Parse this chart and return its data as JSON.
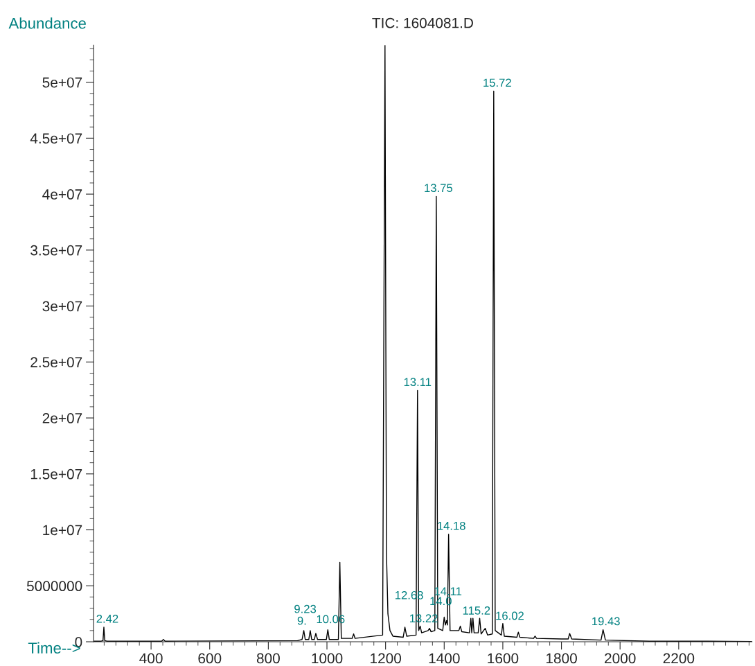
{
  "chart_data": {
    "type": "line",
    "title": "TIC: 1604081.D",
    "xlabel": "Time-->",
    "ylabel": "Abundance",
    "series": [
      {
        "color": "#000000",
        "x": [
          204,
          230,
          236,
          239,
          242,
          250,
          436,
          442,
          448,
          900,
          915,
          921,
          926,
          938,
          943,
          948,
          957,
          962,
          968,
          998,
          1003,
          1008,
          1039,
          1044,
          1049,
          1086,
          1091,
          1096,
          1190,
          1198,
          1203,
          1208,
          1215,
          1225,
          1260,
          1266,
          1272,
          1304,
          1309,
          1313,
          1318,
          1323,
          1345,
          1350,
          1355,
          1368,
          1373,
          1378,
          1395,
          1400,
          1404,
          1408,
          1411,
          1415,
          1420,
          1450,
          1455,
          1460,
          1486,
          1491,
          1494,
          1498,
          1502,
          1516,
          1521,
          1526,
          1540,
          1548,
          1564,
          1569,
          1574,
          1595,
          1600,
          1605,
          1648,
          1653,
          1658,
          1705,
          1710,
          1715,
          1800,
          1823,
          1828,
          1835,
          1935,
          1942,
          1950,
          2100,
          2300,
          2450
        ],
        "values": [
          50000,
          50000,
          100000,
          1300000,
          100000,
          50000,
          50000,
          200000,
          50000,
          100000,
          200000,
          1000000,
          200000,
          200000,
          1000000,
          200000,
          200000,
          750000,
          200000,
          200000,
          1080000,
          200000,
          200000,
          7100000,
          300000,
          300000,
          700000,
          300000,
          600000,
          53300000,
          8000000,
          2500000,
          1000000,
          500000,
          400000,
          1300000,
          500000,
          600000,
          22460000,
          1000000,
          1400000,
          800000,
          1000000,
          1200000,
          900000,
          1000000,
          39800000,
          1200000,
          1000000,
          2200000,
          1500000,
          1900000,
          1500000,
          9600000,
          1000000,
          1000000,
          1400000,
          900000,
          800000,
          2100000,
          800000,
          2100000,
          800000,
          800000,
          2100000,
          700000,
          1200000,
          600000,
          700000,
          49200000,
          1000000,
          600000,
          1630000,
          500000,
          400000,
          860000,
          400000,
          300000,
          500000,
          300000,
          250000,
          250000,
          740000,
          250000,
          150000,
          1080000,
          150000,
          50000,
          50000,
          20000
        ]
      }
    ],
    "annotations": [
      {
        "text": "2.42",
        "x": 239,
        "y": 1300000
      },
      {
        "text": "9.23",
        "x": 921,
        "y": 1000000
      },
      {
        "text": "9.",
        "x": 943,
        "y": 1000000
      },
      {
        "text": "10.06",
        "x": 1003,
        "y": 1080000
      },
      {
        "text": "12.68",
        "x": 1266,
        "y": 1300000
      },
      {
        "text": "13.11",
        "x": 1309,
        "y": 22460000
      },
      {
        "text": "13.22",
        "x": 1318,
        "y": 1400000
      },
      {
        "text": "13.75",
        "x": 1373,
        "y": 39800000
      },
      {
        "text": "14.0",
        "x": 1400,
        "y": 2200000
      },
      {
        "text": "14.11",
        "x": 1408,
        "y": 1900000
      },
      {
        "text": "14.18",
        "x": 1415,
        "y": 9600000
      },
      {
        "text": "115.2",
        "x": 1491,
        "y": 2100000
      },
      {
        "text": "15.72",
        "x": 1569,
        "y": 49200000
      },
      {
        "text": "16.02",
        "x": 1600,
        "y": 1630000
      },
      {
        "text": "19.43",
        "x": 1942,
        "y": 1080000
      }
    ],
    "xlim": [
      204,
      2450
    ],
    "ylim": [
      0,
      53300000
    ],
    "xticks": [
      {
        "value": 240,
        "label": null
      },
      {
        "value": 280,
        "label": null
      },
      {
        "value": 320,
        "label": null
      },
      {
        "value": 360,
        "label": null
      },
      400,
      {
        "value": 440,
        "label": null
      },
      {
        "value": 480,
        "label": null
      },
      {
        "value": 520,
        "label": null
      },
      {
        "value": 560,
        "label": null
      },
      600,
      {
        "value": 640,
        "label": null
      },
      {
        "value": 680,
        "label": null
      },
      {
        "value": 720,
        "label": null
      },
      {
        "value": 760,
        "label": null
      },
      800,
      {
        "value": 840,
        "label": null
      },
      {
        "value": 880,
        "label": null
      },
      {
        "value": 920,
        "label": null
      },
      {
        "value": 960,
        "label": null
      },
      1000,
      {
        "value": 1040,
        "label": null
      },
      {
        "value": 1080,
        "label": null
      },
      {
        "value": 1120,
        "label": null
      },
      {
        "value": 1160,
        "label": null
      },
      1200,
      {
        "value": 1240,
        "label": null
      },
      {
        "value": 1280,
        "label": null
      },
      {
        "value": 1320,
        "label": null
      },
      {
        "value": 1360,
        "label": null
      },
      1400,
      {
        "value": 1440,
        "label": null
      },
      {
        "value": 1480,
        "label": null
      },
      {
        "value": 1520,
        "label": null
      },
      {
        "value": 1560,
        "label": null
      },
      1600,
      {
        "value": 1640,
        "label": null
      },
      {
        "value": 1680,
        "label": null
      },
      {
        "value": 1720,
        "label": null
      },
      {
        "value": 1760,
        "label": null
      },
      1800,
      {
        "value": 1840,
        "label": null
      },
      {
        "value": 1880,
        "label": null
      },
      {
        "value": 1920,
        "label": null
      },
      {
        "value": 1960,
        "label": null
      },
      2000,
      {
        "value": 2040,
        "label": null
      },
      {
        "value": 2080,
        "label": null
      },
      {
        "value": 2120,
        "label": null
      },
      {
        "value": 2160,
        "label": null
      },
      2200,
      {
        "value": 2240,
        "label": null
      },
      {
        "value": 2280,
        "label": null
      },
      {
        "value": 2320,
        "label": null
      },
      {
        "value": 2360,
        "label": null
      },
      {
        "value": 2400,
        "label": null
      },
      {
        "value": 2440,
        "label": null
      }
    ],
    "yticks": [
      0,
      {
        "value": 1000000,
        "label": null
      },
      {
        "value": 2000000,
        "label": null
      },
      {
        "value": 3000000,
        "label": null
      },
      {
        "value": 4000000,
        "label": null
      },
      5000000,
      {
        "value": 6000000,
        "label": null
      },
      {
        "value": 7000000,
        "label": null
      },
      {
        "value": 8000000,
        "label": null
      },
      {
        "value": 9000000,
        "label": null
      },
      {
        "value": 10000000,
        "label": "1e+07"
      },
      {
        "value": 11000000,
        "label": null
      },
      {
        "value": 12000000,
        "label": null
      },
      {
        "value": 13000000,
        "label": null
      },
      {
        "value": 14000000,
        "label": null
      },
      {
        "value": 15000000,
        "label": "1.5e+07"
      },
      {
        "value": 16000000,
        "label": null
      },
      {
        "value": 17000000,
        "label": null
      },
      {
        "value": 18000000,
        "label": null
      },
      {
        "value": 19000000,
        "label": null
      },
      {
        "value": 20000000,
        "label": "2e+07"
      },
      {
        "value": 21000000,
        "label": null
      },
      {
        "value": 22000000,
        "label": null
      },
      {
        "value": 23000000,
        "label": null
      },
      {
        "value": 24000000,
        "label": null
      },
      {
        "value": 25000000,
        "label": "2.5e+07"
      },
      {
        "value": 26000000,
        "label": null
      },
      {
        "value": 27000000,
        "label": null
      },
      {
        "value": 28000000,
        "label": null
      },
      {
        "value": 29000000,
        "label": null
      },
      {
        "value": 30000000,
        "label": "3e+07"
      },
      {
        "value": 31000000,
        "label": null
      },
      {
        "value": 32000000,
        "label": null
      },
      {
        "value": 33000000,
        "label": null
      },
      {
        "value": 34000000,
        "label": null
      },
      {
        "value": 35000000,
        "label": "3.5e+07"
      },
      {
        "value": 36000000,
        "label": null
      },
      {
        "value": 37000000,
        "label": null
      },
      {
        "value": 38000000,
        "label": null
      },
      {
        "value": 39000000,
        "label": null
      },
      {
        "value": 40000000,
        "label": "4e+07"
      },
      {
        "value": 41000000,
        "label": null
      },
      {
        "value": 42000000,
        "label": null
      },
      {
        "value": 43000000,
        "label": null
      },
      {
        "value": 44000000,
        "label": null
      },
      {
        "value": 45000000,
        "label": "4.5e+07"
      },
      {
        "value": 46000000,
        "label": null
      },
      {
        "value": 47000000,
        "label": null
      },
      {
        "value": 48000000,
        "label": null
      },
      {
        "value": 49000000,
        "label": null
      },
      {
        "value": 50000000,
        "label": "5e+07"
      },
      {
        "value": 51000000,
        "label": null
      },
      {
        "value": 52000000,
        "label": null
      },
      {
        "value": 53000000,
        "label": null
      }
    ],
    "grid": false,
    "legend": false,
    "marker": "none",
    "line_style": "solid"
  }
}
